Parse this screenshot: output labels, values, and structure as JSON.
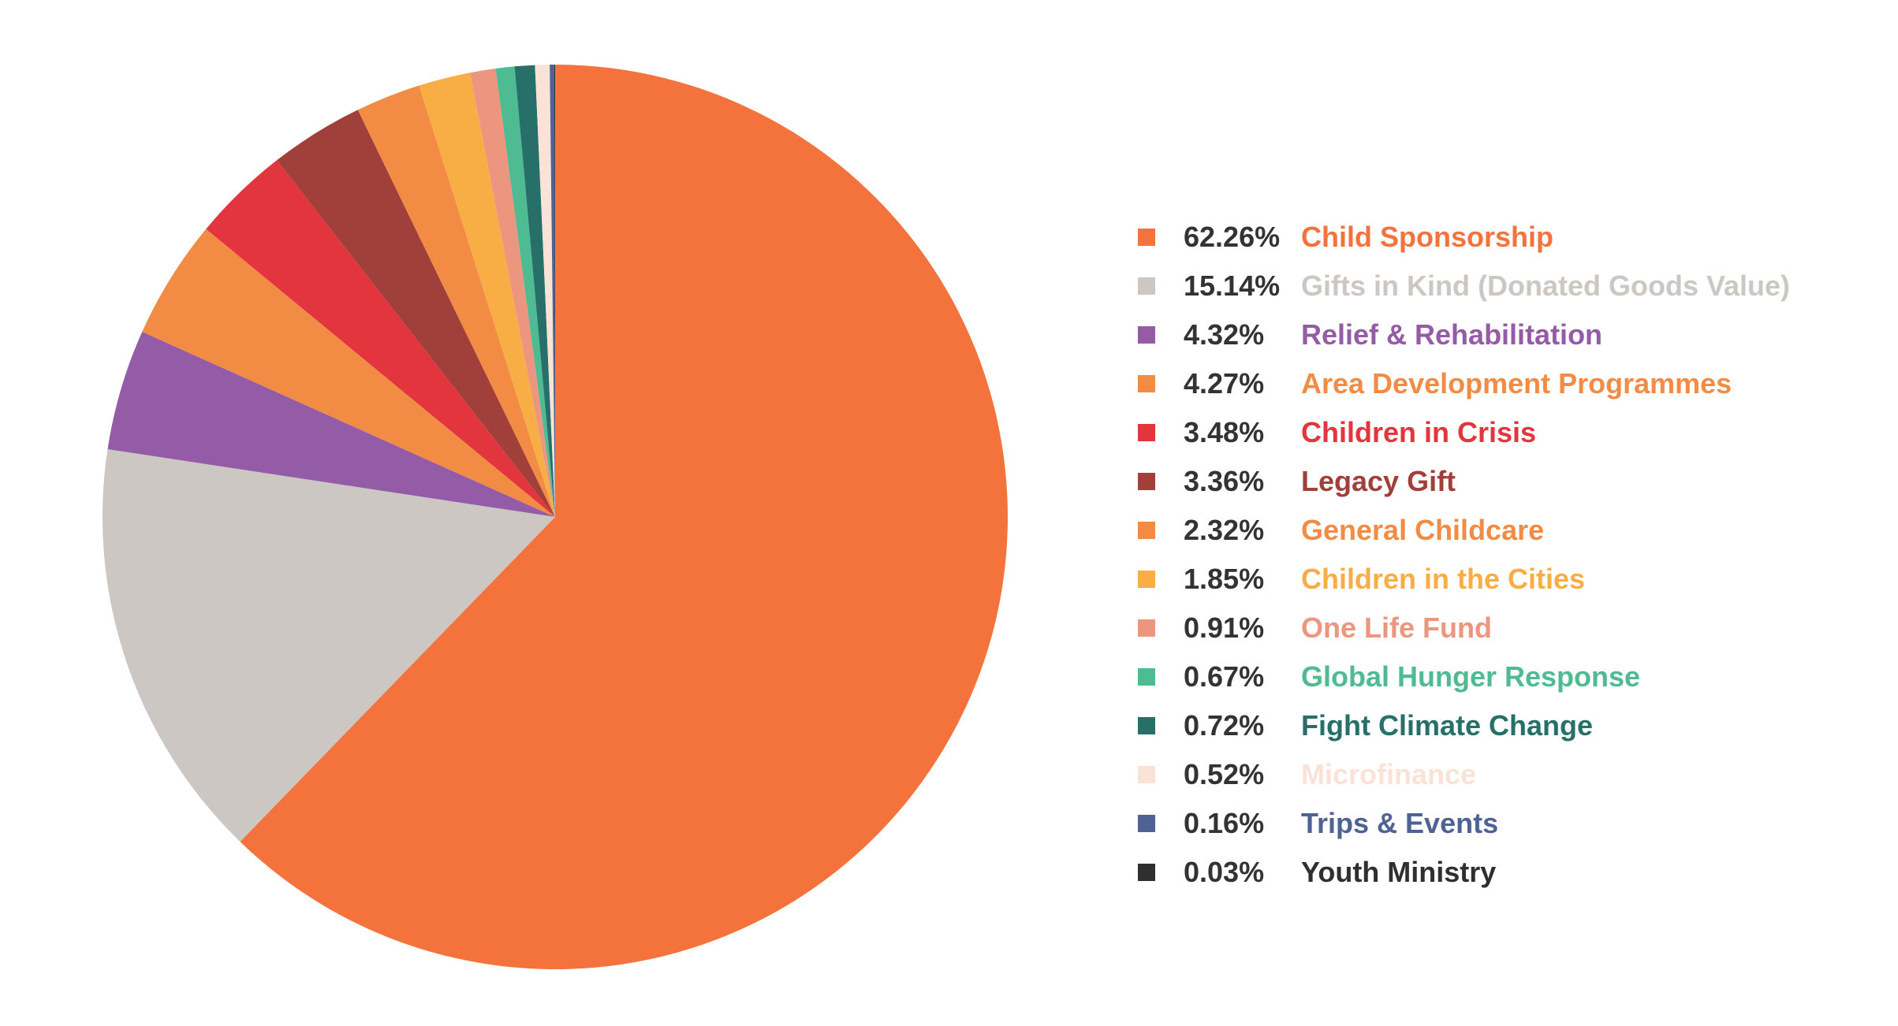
{
  "chart_data": {
    "type": "pie",
    "title": "",
    "legend_position": "right",
    "start": "top",
    "direction": "clockwise",
    "slices": [
      {
        "label": "Child Sponsorship",
        "percent_label": "62.26%",
        "value": 62.26,
        "color": "#F4733C",
        "legend_color": "#F4733C"
      },
      {
        "label": "Gifts in Kind (Donated Goods Value)",
        "percent_label": "15.14%",
        "value": 15.14,
        "color": "#CCC7C3",
        "legend_color": "#CCC7C3"
      },
      {
        "label": "Relief & Rehabilitation",
        "percent_label": "4.32%",
        "value": 4.32,
        "color": "#945CA6",
        "legend_color": "#945CA6"
      },
      {
        "label": "Area Development Programmes",
        "percent_label": "4.27%",
        "value": 4.27,
        "color": "#F28C45",
        "legend_color": "#F28C45"
      },
      {
        "label": "Children in Crisis",
        "percent_label": "3.48%",
        "value": 3.48,
        "color": "#E2353E",
        "legend_color": "#E2353E"
      },
      {
        "label": "Legacy Gift",
        "percent_label": "3.36%",
        "value": 3.36,
        "color": "#A1403A",
        "legend_color": "#A1403A"
      },
      {
        "label": "General Childcare",
        "percent_label": "2.32%",
        "value": 2.32,
        "color": "#F28C45",
        "legend_color": "#F28C45"
      },
      {
        "label": "Children in the Cities",
        "percent_label": "1.85%",
        "value": 1.85,
        "color": "#F8AE45",
        "legend_color": "#F8AE45"
      },
      {
        "label": "One Life Fund",
        "percent_label": "0.91%",
        "value": 0.91,
        "color": "#EC9680",
        "legend_color": "#EC9680"
      },
      {
        "label": "Global Hunger Response",
        "percent_label": "0.67%",
        "value": 0.67,
        "color": "#4FBB93",
        "legend_color": "#4FBB93"
      },
      {
        "label": "Fight Climate Change",
        "percent_label": "0.72%",
        "value": 0.72,
        "color": "#276F69",
        "legend_color": "#276F69"
      },
      {
        "label": "Microfinance",
        "percent_label": "0.52%",
        "value": 0.52,
        "color": "#FAE3D6",
        "legend_color": "#FAE3D6"
      },
      {
        "label": "Trips & Events",
        "percent_label": "0.16%",
        "value": 0.16,
        "color": "#4E6394",
        "legend_color": "#4E6394"
      },
      {
        "label": "Youth Ministry",
        "percent_label": "0.03%",
        "value": 0.03,
        "color": "#333333",
        "legend_color": "#2F2F2F"
      }
    ]
  }
}
